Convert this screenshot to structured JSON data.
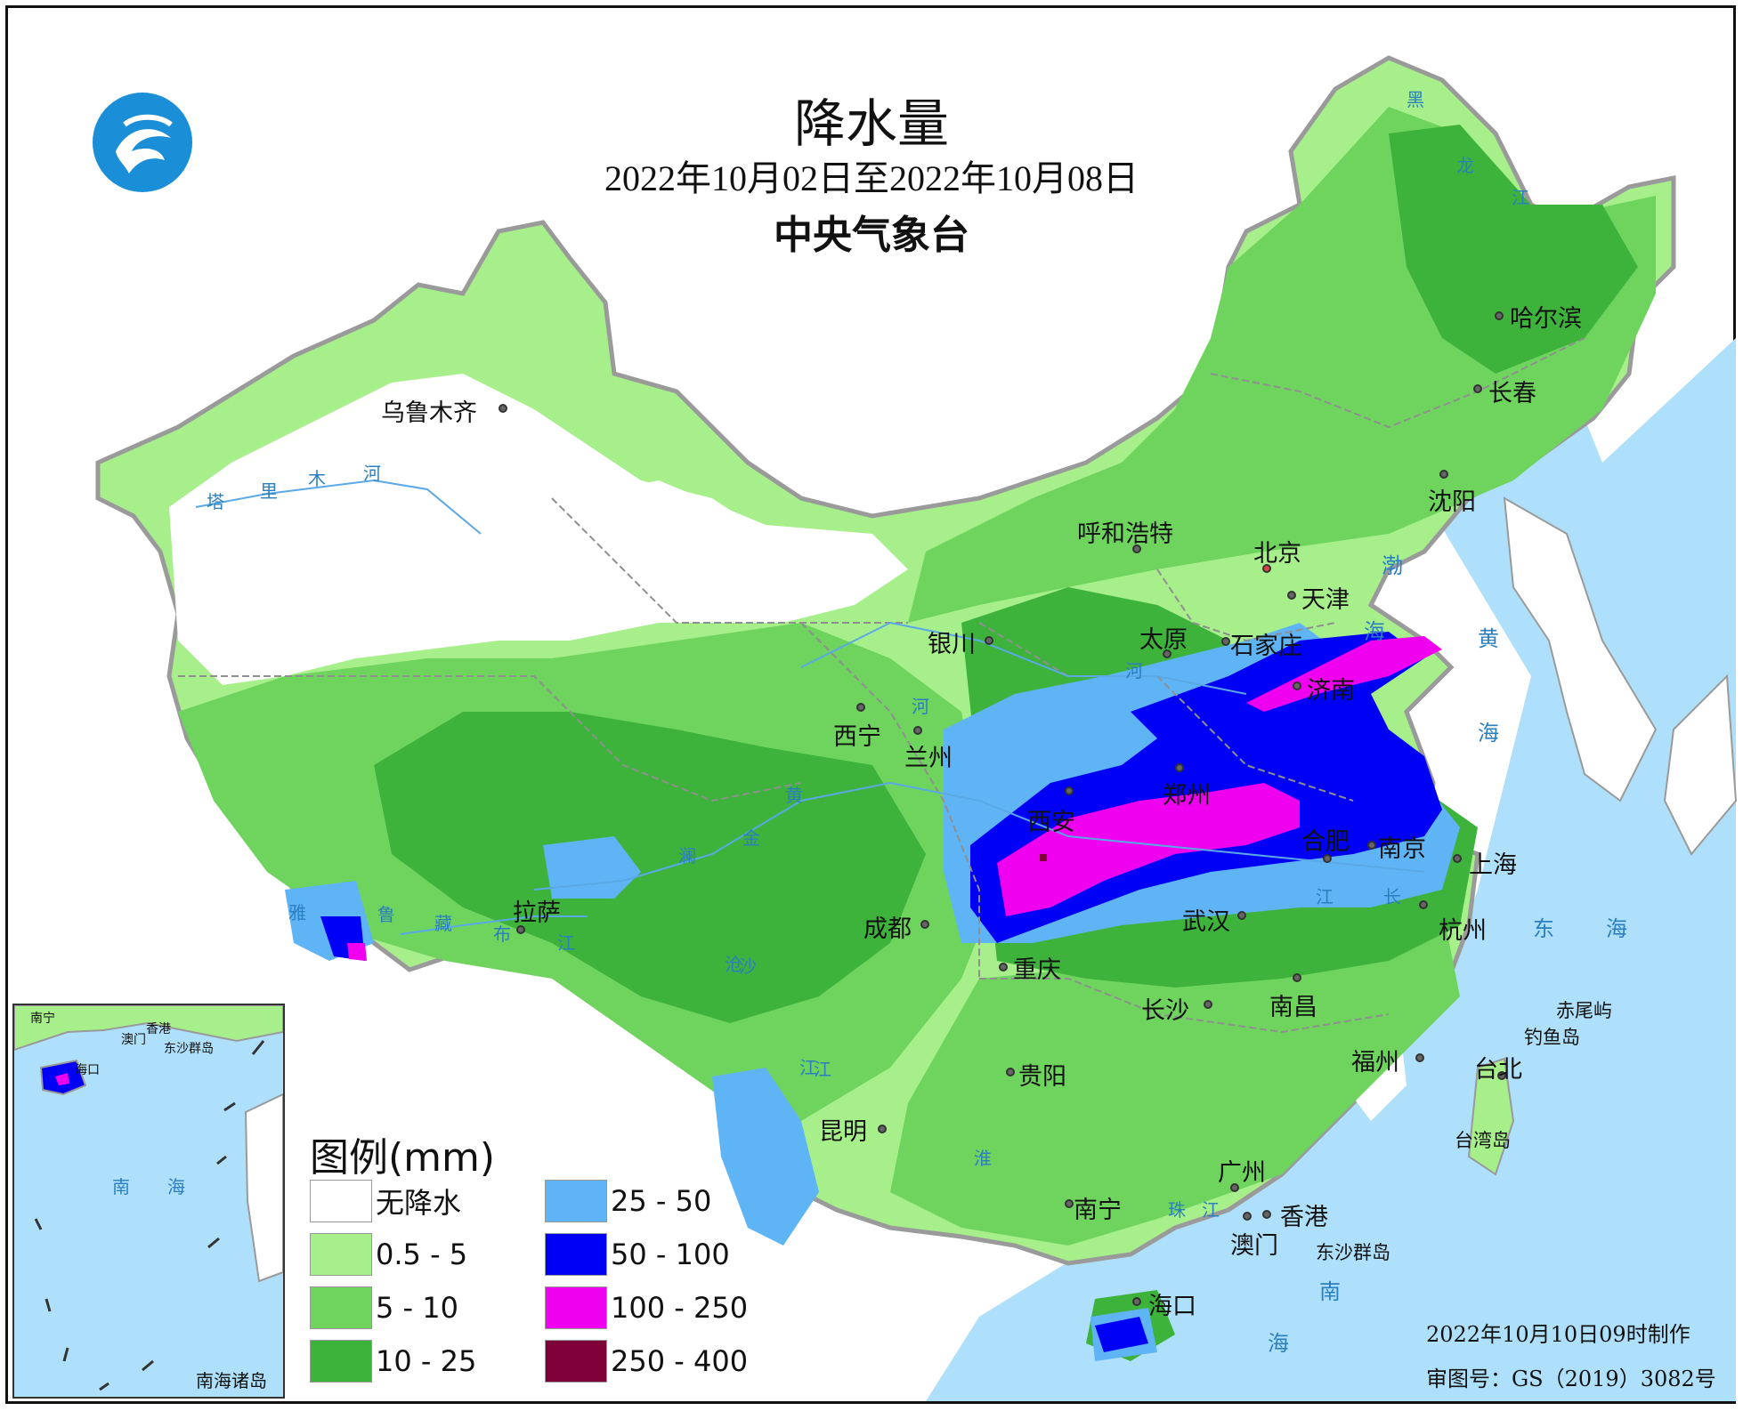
{
  "title": "降水量",
  "date_range": "2022年10月02日至2022年10月08日",
  "agency": "中央气象台",
  "legend": {
    "title": "图例(mm)",
    "items": [
      {
        "label": "无降水",
        "color": "#ffffff"
      },
      {
        "label": "0.5 - 5",
        "color": "#a6ef8b"
      },
      {
        "label": "5 - 10",
        "color": "#6fd45e"
      },
      {
        "label": "10 - 25",
        "color": "#3db33c"
      },
      {
        "label": "25 - 50",
        "color": "#5fb4f5"
      },
      {
        "label": "50 - 100",
        "color": "#0000f5"
      },
      {
        "label": "100 - 250",
        "color": "#ef00ef"
      },
      {
        "label": "250 - 400",
        "color": "#7f0038"
      }
    ]
  },
  "cities": [
    "乌鲁木齐",
    "哈尔滨",
    "长春",
    "沈阳",
    "呼和浩特",
    "北京",
    "天津",
    "银川",
    "太原",
    "石家庄",
    "济南",
    "西宁",
    "兰州",
    "郑州",
    "西安",
    "合肥",
    "南京",
    "上海",
    "拉萨",
    "成都",
    "武汉",
    "杭州",
    "重庆",
    "长沙",
    "南昌",
    "贵阳",
    "福州",
    "台北",
    "昆明",
    "广州",
    "香港",
    "南宁",
    "澳门",
    "海口"
  ],
  "islands": [
    "赤尾屿",
    "钓鱼岛",
    "台湾岛",
    "东沙群岛"
  ],
  "seas": [
    "渤",
    "海",
    "黄",
    "海",
    "东",
    "海",
    "南",
    "海"
  ],
  "rivers": [
    "塔",
    "里",
    "木",
    "河",
    "雅",
    "鲁",
    "藏",
    "布",
    "江",
    "黑",
    "龙",
    "江",
    "黄",
    "河",
    "金",
    "沙",
    "江",
    "澜",
    "沧",
    "江",
    "长",
    "江",
    "珠",
    "江",
    "淮",
    "河"
  ],
  "inset": {
    "title": "南海诸岛",
    "labels": [
      "南宁",
      "澳门",
      "香港",
      "东沙群岛",
      "海口",
      "南",
      "海"
    ]
  },
  "footer": {
    "made": "2022年10月10日09时制作",
    "review_no": "审图号：GS（2019）3082号"
  },
  "colors": {
    "ocean": "#aee0fb",
    "border": "#9a9a9a",
    "province_border": "#8f8f8f"
  }
}
